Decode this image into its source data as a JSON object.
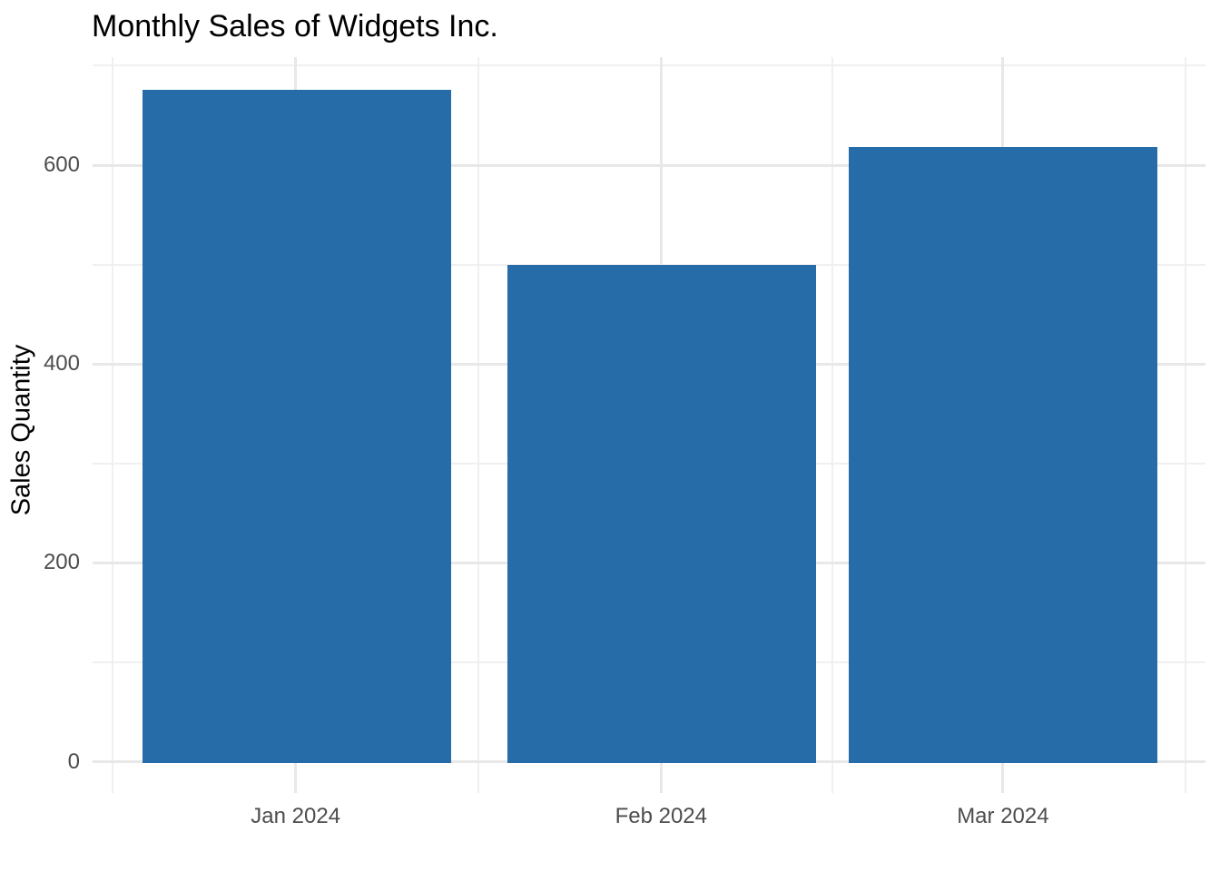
{
  "chart_data": {
    "type": "bar",
    "title": "Monthly Sales of Widgets Inc.",
    "xlabel": "",
    "ylabel": "Sales Quantity",
    "categories": [
      "Jan 2024",
      "Feb 2024",
      "Mar 2024"
    ],
    "values": [
      676,
      500,
      618
    ],
    "y_ticks": [
      0,
      200,
      400,
      600
    ],
    "y_minor_ticks": [
      100,
      300,
      500,
      700
    ],
    "ylim": [
      -35,
      709
    ],
    "grid": "on",
    "legend": "none",
    "bar_color": "#266CA9",
    "axis_text_color": "#4D4D4D",
    "title_color": "#000000",
    "background_color": "#FFFFFF",
    "gridline_color": "#EBEBEB"
  }
}
